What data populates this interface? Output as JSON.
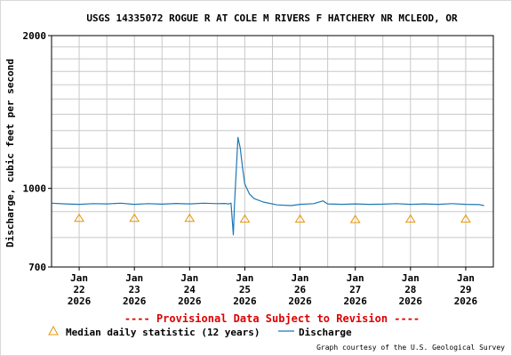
{
  "chart_data": {
    "type": "line",
    "title": "USGS 14335072 ROGUE R AT COLE M RIVERS F HATCHERY NR MCLEOD, OR",
    "ylabel": "Discharge, cubic feet per second",
    "xlabel": "",
    "yscale": "log",
    "ylim": [
      700,
      2000
    ],
    "y_tick_labels": [
      "2000",
      "1000",
      "700"
    ],
    "xlim": [
      "2026-01-21T12:00",
      "2026-01-29T12:00"
    ],
    "x_ticks": [
      {
        "day": "Jan",
        "num": "22",
        "year": "2026"
      },
      {
        "day": "Jan",
        "num": "23",
        "year": "2026"
      },
      {
        "day": "Jan",
        "num": "24",
        "year": "2026"
      },
      {
        "day": "Jan",
        "num": "25",
        "year": "2026"
      },
      {
        "day": "Jan",
        "num": "26",
        "year": "2026"
      },
      {
        "day": "Jan",
        "num": "27",
        "year": "2026"
      },
      {
        "day": "Jan",
        "num": "28",
        "year": "2026"
      },
      {
        "day": "Jan",
        "num": "29",
        "year": "2026"
      }
    ],
    "grid": true,
    "series": [
      {
        "name": "Discharge",
        "color": "#1f77b4",
        "points": [
          [
            "2026-01-21T12:00",
            935
          ],
          [
            "2026-01-21T18:00",
            932
          ],
          [
            "2026-01-22T00:00",
            930
          ],
          [
            "2026-01-22T06:00",
            933
          ],
          [
            "2026-01-22T12:00",
            932
          ],
          [
            "2026-01-22T18:00",
            935
          ],
          [
            "2026-01-23T00:00",
            930
          ],
          [
            "2026-01-23T06:00",
            933
          ],
          [
            "2026-01-23T12:00",
            931
          ],
          [
            "2026-01-23T18:00",
            934
          ],
          [
            "2026-01-24T00:00",
            932
          ],
          [
            "2026-01-24T06:00",
            935
          ],
          [
            "2026-01-24T12:00",
            933
          ],
          [
            "2026-01-24T15:00",
            934
          ],
          [
            "2026-01-24T17:00",
            932
          ],
          [
            "2026-01-24T18:00",
            935
          ],
          [
            "2026-01-24T19:00",
            810
          ],
          [
            "2026-01-24T19:30",
            930
          ],
          [
            "2026-01-24T21:00",
            1260
          ],
          [
            "2026-01-24T22:00",
            1200
          ],
          [
            "2026-01-24T23:00",
            1100
          ],
          [
            "2026-01-25T00:00",
            1020
          ],
          [
            "2026-01-25T02:00",
            975
          ],
          [
            "2026-01-25T04:00",
            955
          ],
          [
            "2026-01-25T08:00",
            940
          ],
          [
            "2026-01-25T14:00",
            928
          ],
          [
            "2026-01-25T20:00",
            925
          ],
          [
            "2026-01-26T00:00",
            930
          ],
          [
            "2026-01-26T06:00",
            933
          ],
          [
            "2026-01-26T10:00",
            945
          ],
          [
            "2026-01-26T12:00",
            932
          ],
          [
            "2026-01-26T18:00",
            930
          ],
          [
            "2026-01-27T00:00",
            932
          ],
          [
            "2026-01-27T06:00",
            930
          ],
          [
            "2026-01-27T12:00",
            931
          ],
          [
            "2026-01-27T18:00",
            933
          ],
          [
            "2026-01-28T00:00",
            930
          ],
          [
            "2026-01-28T06:00",
            932
          ],
          [
            "2026-01-28T12:00",
            930
          ],
          [
            "2026-01-28T18:00",
            933
          ],
          [
            "2026-01-29T00:00",
            930
          ],
          [
            "2026-01-29T06:00",
            929
          ],
          [
            "2026-01-29T08:00",
            925
          ]
        ]
      },
      {
        "name": "Median daily statistic (12 years)",
        "marker": "triangle",
        "color": "#e69500",
        "points": [
          [
            "2026-01-22T00:00",
            875
          ],
          [
            "2026-01-23T00:00",
            875
          ],
          [
            "2026-01-24T00:00",
            875
          ],
          [
            "2026-01-25T00:00",
            872
          ],
          [
            "2026-01-26T00:00",
            872
          ],
          [
            "2026-01-27T00:00",
            870
          ],
          [
            "2026-01-28T00:00",
            872
          ],
          [
            "2026-01-29T00:00",
            872
          ]
        ]
      }
    ],
    "provisional_notice": "---- Provisional Data Subject to Revision ----",
    "legend": {
      "placement": "bottom",
      "median_label": "Median daily statistic (12 years)",
      "discharge_label": "Discharge"
    },
    "credit": "Graph courtesy of the U.S. Geological Survey"
  }
}
